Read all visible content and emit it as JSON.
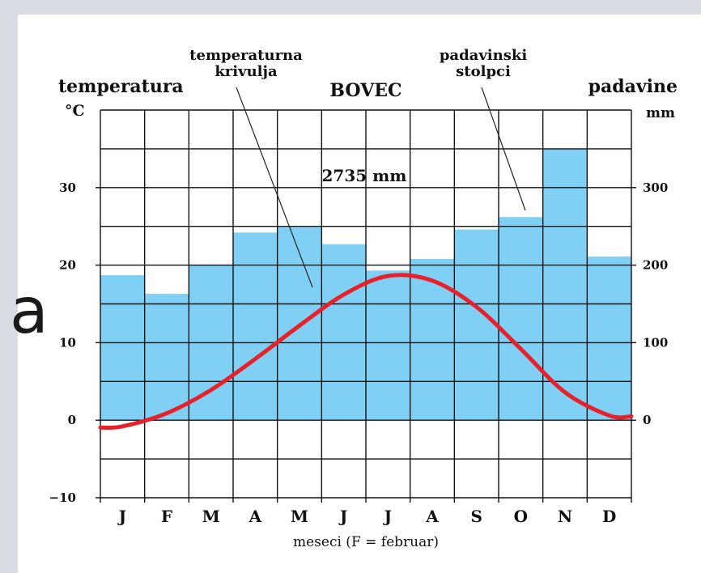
{
  "side_glyph": "a",
  "chart_data": {
    "type": "bar",
    "title": "BOVEC",
    "left_axis": {
      "title": "temperatura",
      "unit": "°C",
      "ylim": [
        -10,
        40
      ],
      "ticks": [
        "−10",
        "0",
        "10",
        "20",
        "30"
      ]
    },
    "right_axis": {
      "title": "padavine",
      "unit": "mm",
      "ylim": [
        -100,
        400
      ],
      "ticks": [
        "0",
        "100",
        "200",
        "300"
      ]
    },
    "categories": [
      "J",
      "F",
      "M",
      "A",
      "M",
      "J",
      "J",
      "A",
      "S",
      "O",
      "N",
      "D"
    ],
    "xlabel": "meseci (F = februar)",
    "series": [
      {
        "name": "padavinski stolpci",
        "kind": "bar",
        "color": "#7fd0f4",
        "values": [
          187,
          163,
          200,
          242,
          249,
          227,
          193,
          208,
          246,
          262,
          350,
          211
        ]
      },
      {
        "name": "temperaturna krivulja",
        "kind": "line",
        "color": "#e8202a",
        "values": [
          -0.8,
          0.9,
          3.9,
          7.9,
          12.2,
          16.2,
          18.6,
          18.0,
          14.6,
          9.2,
          3.6,
          0.6
        ]
      }
    ],
    "annotations": {
      "total": "2735 mm"
    },
    "grid": true
  }
}
